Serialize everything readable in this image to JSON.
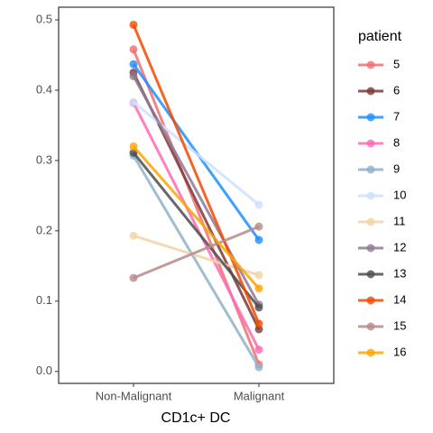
{
  "chart_data": {
    "type": "line",
    "xlabel": "CD1c+ DC",
    "legend_title": "patient",
    "categories": [
      "Non-Malignant",
      "Malignant"
    ],
    "ylim": [
      -0.017,
      0.518
    ],
    "yticks": [
      {
        "value": 0,
        "label": "0.0"
      },
      0.1,
      0.2,
      0.3,
      0.4,
      0.5
    ],
    "series": [
      {
        "name": "5",
        "color": "#f36f6f",
        "values": [
          0.458,
          0.01
        ]
      },
      {
        "name": "6",
        "color": "#7b3a3a",
        "values": [
          0.425,
          0.06
        ]
      },
      {
        "name": "7",
        "color": "#1e8fff",
        "values": [
          0.437,
          0.187
        ]
      },
      {
        "name": "8",
        "color": "#ff69b4",
        "values": [
          0.382,
          0.031
        ]
      },
      {
        "name": "9",
        "color": "#8fb3c9",
        "values": [
          0.307,
          0.006
        ]
      },
      {
        "name": "10",
        "color": "#cce0ff",
        "values": [
          0.383,
          0.237
        ]
      },
      {
        "name": "11",
        "color": "#f0d4a8",
        "values": [
          0.193,
          0.137
        ]
      },
      {
        "name": "12",
        "color": "#8e7a94",
        "values": [
          0.42,
          0.095
        ]
      },
      {
        "name": "13",
        "color": "#4d4d4d",
        "values": [
          0.311,
          0.091
        ]
      },
      {
        "name": "14",
        "color": "#f24a00",
        "values": [
          0.493,
          0.068
        ]
      },
      {
        "name": "15",
        "color": "#b88a8a",
        "values": [
          0.133,
          0.206
        ]
      },
      {
        "name": "16",
        "color": "#ffa500",
        "values": [
          0.32,
          0.118
        ]
      }
    ]
  }
}
